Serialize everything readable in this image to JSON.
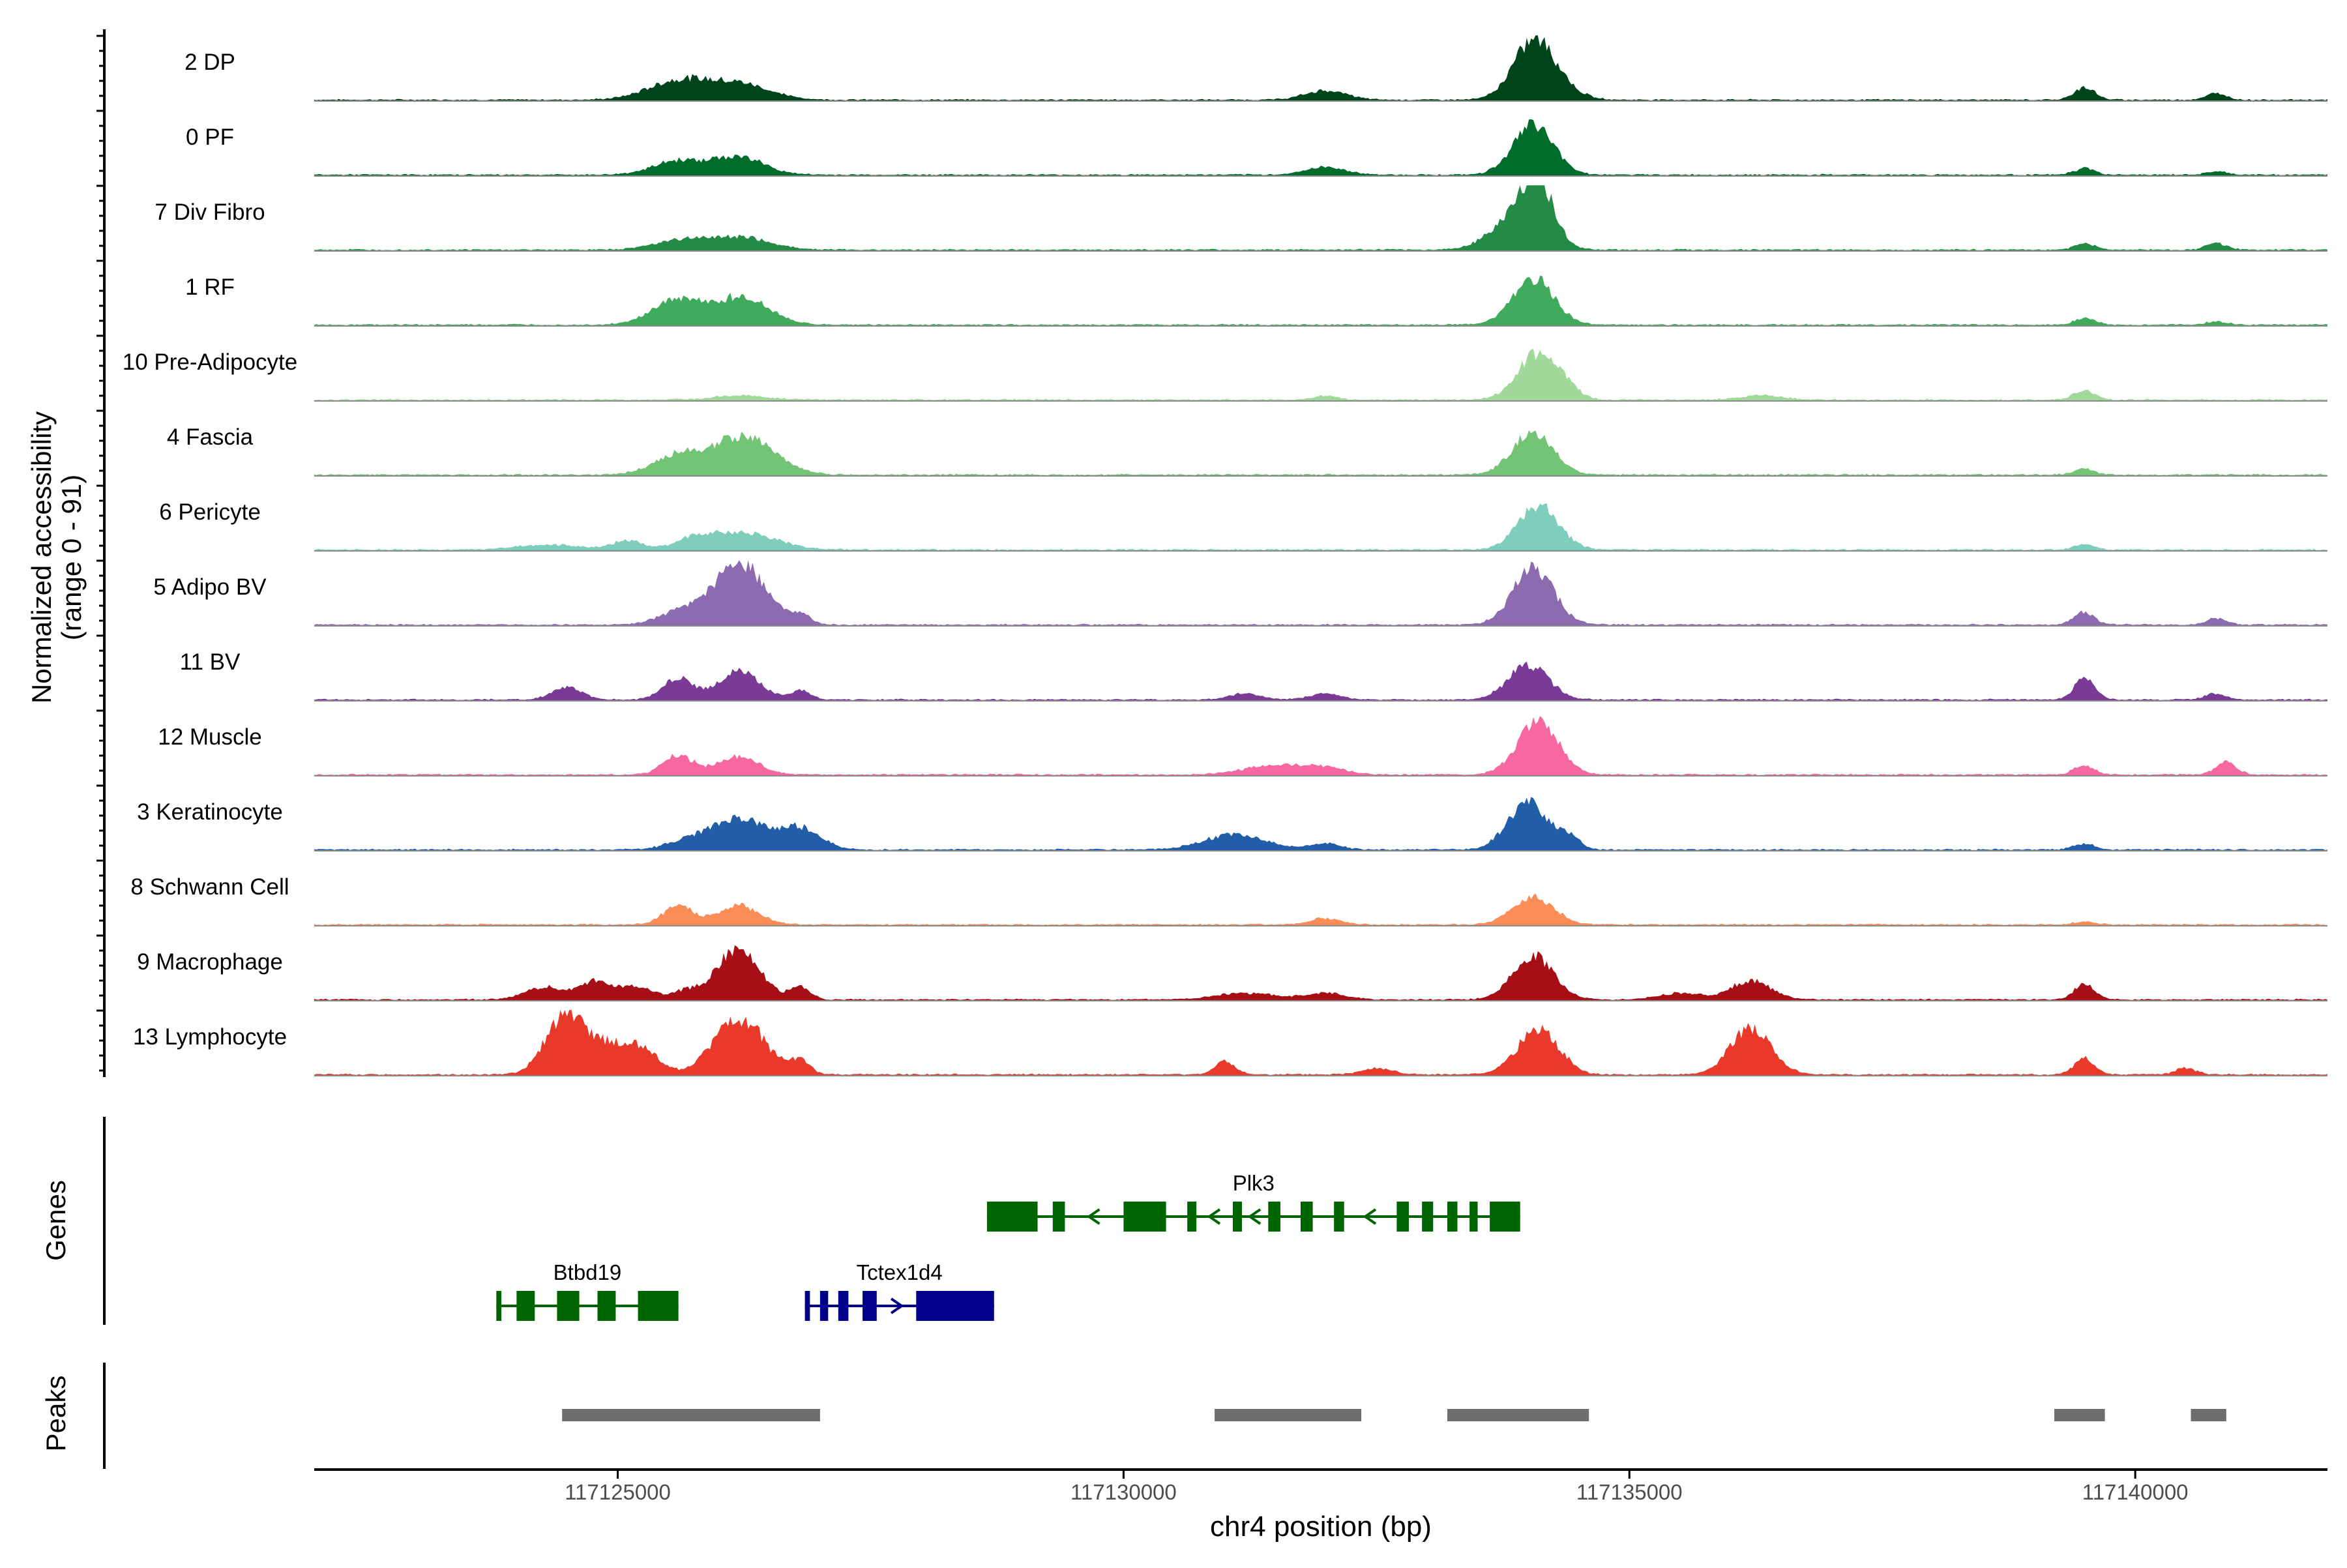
{
  "axis": {
    "ylabel_line1": "Normalized accessibility",
    "ylabel_line2": "(range 0 - 91)",
    "xlabel": "chr4 position (bp)",
    "xmin": 117122000,
    "xmax": 117141900,
    "xticks": [
      117125000,
      117130000,
      117135000,
      117140000
    ],
    "xtick_labels": [
      "117125000",
      "117130000",
      "117135000",
      "117140000"
    ],
    "genes_label": "Genes",
    "peaks_label": "Peaks"
  },
  "chart_data": {
    "type": "area",
    "tracks": [
      {
        "name": "2 DP",
        "color": "#00441b",
        "peaks": [
          [
            117125600,
            0.3,
            300
          ],
          [
            117126200,
            0.25,
            300
          ],
          [
            117132000,
            0.15,
            200
          ],
          [
            117134050,
            0.9,
            200
          ],
          [
            117134300,
            0.15,
            200
          ],
          [
            117139500,
            0.2,
            100
          ],
          [
            117140800,
            0.1,
            100
          ]
        ]
      },
      {
        "name": "0 PF",
        "color": "#006d2c",
        "peaks": [
          [
            117125600,
            0.22,
            250
          ],
          [
            117126200,
            0.28,
            250
          ],
          [
            117132000,
            0.12,
            200
          ],
          [
            117134050,
            0.8,
            200
          ],
          [
            117139500,
            0.1,
            100
          ],
          [
            117140800,
            0.05,
            100
          ]
        ]
      },
      {
        "name": "7 Div Fibro",
        "color": "#238b45",
        "peaks": [
          [
            117125600,
            0.15,
            250
          ],
          [
            117126200,
            0.2,
            300
          ],
          [
            117133900,
            0.55,
            250
          ],
          [
            117134100,
            0.8,
            150
          ],
          [
            117139500,
            0.1,
            100
          ],
          [
            117140800,
            0.1,
            100
          ]
        ]
      },
      {
        "name": "1 RF",
        "color": "#41ab5d",
        "peaks": [
          [
            117125600,
            0.4,
            250
          ],
          [
            117126250,
            0.45,
            250
          ],
          [
            117134050,
            0.75,
            200
          ],
          [
            117139500,
            0.1,
            100
          ],
          [
            117140800,
            0.05,
            100
          ]
        ]
      },
      {
        "name": "10 Pre-Adipocyte",
        "color": "#a1d99b",
        "peaks": [
          [
            117126200,
            0.07,
            250
          ],
          [
            117132000,
            0.07,
            100
          ],
          [
            117134100,
            0.75,
            200
          ],
          [
            117134400,
            0.1,
            100
          ],
          [
            117136300,
            0.07,
            200
          ],
          [
            117139500,
            0.15,
            100
          ]
        ]
      },
      {
        "name": "4 Fascia",
        "color": "#74c476",
        "peaks": [
          [
            117125600,
            0.3,
            250
          ],
          [
            117126250,
            0.6,
            300
          ],
          [
            117134050,
            0.7,
            200
          ],
          [
            117139500,
            0.1,
            100
          ]
        ]
      },
      {
        "name": "6 Pericyte",
        "color": "#7fcdbb",
        "peaks": [
          [
            117124300,
            0.08,
            300
          ],
          [
            117125100,
            0.15,
            150
          ],
          [
            117125800,
            0.2,
            200
          ],
          [
            117126300,
            0.25,
            300
          ],
          [
            117134100,
            0.7,
            200
          ],
          [
            117139500,
            0.08,
            100
          ]
        ]
      },
      {
        "name": "5 Adipo BV",
        "color": "#8c6bb1",
        "peaks": [
          [
            117125600,
            0.2,
            200
          ],
          [
            117126200,
            1.0,
            250
          ],
          [
            117126800,
            0.15,
            100
          ],
          [
            117134050,
            0.9,
            200
          ],
          [
            117139500,
            0.2,
            100
          ],
          [
            117140800,
            0.1,
            100
          ]
        ]
      },
      {
        "name": "11 BV",
        "color": "#7a3b97",
        "peaks": [
          [
            117124500,
            0.2,
            150
          ],
          [
            117125600,
            0.35,
            150
          ],
          [
            117126200,
            0.45,
            200
          ],
          [
            117126800,
            0.15,
            100
          ],
          [
            117131200,
            0.1,
            150
          ],
          [
            117132000,
            0.1,
            150
          ],
          [
            117134000,
            0.55,
            200
          ],
          [
            117139500,
            0.35,
            100
          ],
          [
            117140800,
            0.1,
            100
          ]
        ]
      },
      {
        "name": "12 Muscle",
        "color": "#f768a1",
        "peaks": [
          [
            117125600,
            0.3,
            150
          ],
          [
            117126200,
            0.3,
            200
          ],
          [
            117131500,
            0.15,
            300
          ],
          [
            117132000,
            0.1,
            200
          ],
          [
            117134100,
            0.85,
            200
          ],
          [
            117139500,
            0.15,
            100
          ],
          [
            117140900,
            0.2,
            100
          ]
        ]
      },
      {
        "name": "3 Keratinocyte",
        "color": "#225ea8",
        "peaks": [
          [
            117125700,
            0.15,
            200
          ],
          [
            117126200,
            0.5,
            250
          ],
          [
            117126800,
            0.35,
            200
          ],
          [
            117131100,
            0.25,
            300
          ],
          [
            117132000,
            0.1,
            150
          ],
          [
            117134000,
            0.75,
            200
          ],
          [
            117134400,
            0.2,
            100
          ],
          [
            117139500,
            0.1,
            100
          ]
        ]
      },
      {
        "name": "8 Schwann Cell",
        "color": "#fc8d59",
        "peaks": [
          [
            117125600,
            0.3,
            150
          ],
          [
            117126200,
            0.3,
            200
          ],
          [
            117132000,
            0.1,
            150
          ],
          [
            117134050,
            0.45,
            200
          ],
          [
            117139500,
            0.05,
            100
          ]
        ]
      },
      {
        "name": "9 Macrophage",
        "color": "#a50f15",
        "peaks": [
          [
            117124300,
            0.2,
            200
          ],
          [
            117124800,
            0.3,
            150
          ],
          [
            117125200,
            0.2,
            150
          ],
          [
            117125700,
            0.15,
            150
          ],
          [
            117126200,
            0.85,
            200
          ],
          [
            117126800,
            0.2,
            100
          ],
          [
            117131200,
            0.1,
            300
          ],
          [
            117132000,
            0.1,
            200
          ],
          [
            117134050,
            0.7,
            200
          ],
          [
            117135500,
            0.1,
            200
          ],
          [
            117136200,
            0.3,
            200
          ],
          [
            117139500,
            0.25,
            100
          ]
        ]
      },
      {
        "name": "13 Lymphocyte",
        "color": "#e8392b",
        "peaks": [
          [
            117124500,
            1.0,
            200
          ],
          [
            117125000,
            0.45,
            200
          ],
          [
            117125300,
            0.25,
            150
          ],
          [
            117126200,
            0.9,
            250
          ],
          [
            117126800,
            0.2,
            100
          ],
          [
            117131000,
            0.2,
            100
          ],
          [
            117132500,
            0.1,
            150
          ],
          [
            117134100,
            0.75,
            200
          ],
          [
            117136200,
            0.75,
            200
          ],
          [
            117139500,
            0.25,
            100
          ],
          [
            117140500,
            0.1,
            100
          ]
        ]
      }
    ]
  },
  "genes": [
    {
      "name": "Plk3",
      "strand": "-",
      "color": "#006400",
      "start": 117128650,
      "end": 117133920,
      "row": 0,
      "exons": [
        [
          117128650,
          117129150
        ],
        [
          117129300,
          117129420
        ],
        [
          117130000,
          117130420
        ],
        [
          117130630,
          117130720
        ],
        [
          117131080,
          117131170
        ],
        [
          117131430,
          117131550
        ],
        [
          117131750,
          117131870
        ],
        [
          117132080,
          117132180
        ],
        [
          117132700,
          117132820
        ],
        [
          117132950,
          117133060
        ],
        [
          117133200,
          117133300
        ],
        [
          117133420,
          117133500
        ],
        [
          117133620,
          117133920
        ]
      ]
    },
    {
      "name": "Btbd19",
      "strand": "-",
      "color": "#006400",
      "start": 117123800,
      "end": 117125600,
      "row": 1,
      "exons": [
        [
          117123800,
          117123850
        ],
        [
          117124000,
          117124180
        ],
        [
          117124400,
          117124620
        ],
        [
          117124800,
          117124980
        ],
        [
          117125200,
          117125600
        ]
      ]
    },
    {
      "name": "Tctex1d4",
      "strand": "+",
      "color": "#00008b",
      "start": 117126850,
      "end": 117128720,
      "row": 1,
      "exons": [
        [
          117126850,
          117126900
        ],
        [
          117127000,
          117127080
        ],
        [
          117127180,
          117127280
        ],
        [
          117127420,
          117127560
        ],
        [
          117127950,
          117128720
        ]
      ]
    }
  ],
  "peaks": [
    [
      117124450,
      117127000
    ],
    [
      117130900,
      117132350
    ],
    [
      117133200,
      117134600
    ],
    [
      117139200,
      117139700
    ],
    [
      117140550,
      117140900
    ]
  ]
}
